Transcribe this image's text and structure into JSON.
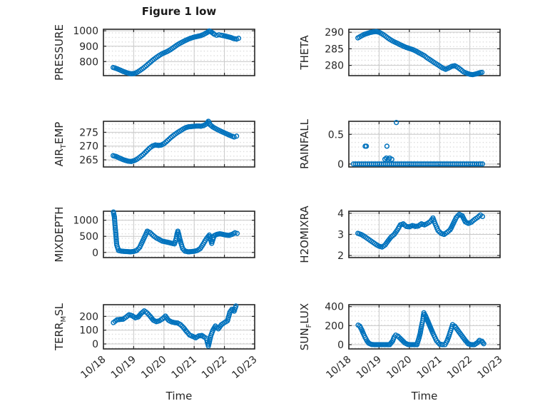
{
  "title": "Figure 1 low",
  "xlabel": "Time",
  "x_tick_labels": [
    "10/18",
    "10/19",
    "10/20",
    "10/21",
    "10/22",
    "10/23"
  ],
  "style": {
    "marker_color": "#0072BD",
    "axis_color": "#262626",
    "major_grid_color": "#c9c9c9",
    "minor_grid_dot_color": "#d6d6d6",
    "text_color": "#262626",
    "background": "#ffffff"
  },
  "chart_data": [
    {
      "type": "scatter",
      "name": "PRESSURE",
      "row": 0,
      "col": 0,
      "ylabel_parts": [
        {
          "text": "PRESSURE",
          "sub": false
        }
      ],
      "ylim": [
        709,
        1010
      ],
      "yticks": [
        800,
        900,
        1000
      ],
      "xlim_days": [
        0,
        5
      ],
      "grid": true,
      "minor_grid": true,
      "series": [
        {
          "interpolate": true,
          "x": [
            0.32,
            0.42,
            0.52,
            0.62,
            0.72,
            0.82,
            0.92,
            1.02,
            1.12,
            1.22,
            1.32,
            1.42,
            1.52,
            1.62,
            1.72,
            1.82,
            1.92,
            2.02,
            2.12,
            2.22,
            2.32,
            2.42,
            2.52,
            2.62,
            2.72,
            2.82,
            2.92,
            3.02,
            3.12,
            3.22,
            3.32,
            3.42,
            3.5,
            3.58,
            3.66,
            3.74,
            3.82,
            3.9,
            4.0,
            4.1,
            4.2,
            4.3,
            4.4,
            4.47
          ],
          "y": [
            762,
            756,
            748,
            739,
            731,
            725,
            721,
            723,
            731,
            744,
            758,
            774,
            791,
            808,
            823,
            837,
            849,
            858,
            867,
            878,
            892,
            906,
            918,
            928,
            938,
            947,
            954,
            960,
            964,
            969,
            977,
            988,
            999,
            990,
            978,
            971,
            974,
            971,
            967,
            962,
            957,
            950,
            946,
            951
          ]
        }
      ]
    },
    {
      "type": "scatter",
      "name": "THETA",
      "row": 0,
      "col": 1,
      "ylabel_parts": [
        {
          "text": "THETA",
          "sub": false
        }
      ],
      "ylim": [
        276.9,
        290.9
      ],
      "yticks": [
        280,
        285,
        290
      ],
      "xlim_days": [
        0,
        5
      ],
      "grid": true,
      "minor_grid": true,
      "series": [
        {
          "interpolate": true,
          "x": [
            0.3,
            0.4,
            0.5,
            0.6,
            0.7,
            0.8,
            0.9,
            1.0,
            1.1,
            1.2,
            1.3,
            1.4,
            1.5,
            1.6,
            1.7,
            1.8,
            1.9,
            2.0,
            2.1,
            2.2,
            2.3,
            2.4,
            2.5,
            2.6,
            2.7,
            2.8,
            2.9,
            3.0,
            3.1,
            3.2,
            3.3,
            3.4,
            3.5,
            3.6,
            3.7,
            3.8,
            3.9,
            4.0,
            4.1,
            4.2,
            4.3,
            4.4
          ],
          "y": [
            288.3,
            288.8,
            289.3,
            289.6,
            289.9,
            290.1,
            290.2,
            290.0,
            289.5,
            288.9,
            288.2,
            287.6,
            287.1,
            286.7,
            286.2,
            285.8,
            285.4,
            285.1,
            284.8,
            284.4,
            283.9,
            283.4,
            282.9,
            282.2,
            281.6,
            281.0,
            280.4,
            279.8,
            279.2,
            278.8,
            279.2,
            279.7,
            279.9,
            279.4,
            278.7,
            278.0,
            277.6,
            277.3,
            277.2,
            277.4,
            277.7,
            277.9
          ]
        }
      ]
    },
    {
      "type": "scatter",
      "name": "AIR_TEMP",
      "row": 1,
      "col": 0,
      "ylabel_parts": [
        {
          "text": "AIR",
          "sub": false
        },
        {
          "text": "T",
          "sub": true
        },
        {
          "text": "EMP",
          "sub": false
        }
      ],
      "ylim": [
        262.4,
        279.0
      ],
      "yticks": [
        265,
        270,
        275
      ],
      "xlim_days": [
        0,
        5
      ],
      "grid": true,
      "minor_grid": true,
      "series": [
        {
          "interpolate": true,
          "x": [
            0.32,
            0.42,
            0.52,
            0.62,
            0.72,
            0.82,
            0.92,
            1.02,
            1.12,
            1.22,
            1.32,
            1.42,
            1.52,
            1.62,
            1.72,
            1.82,
            1.92,
            2.02,
            2.12,
            2.22,
            2.32,
            2.42,
            2.52,
            2.62,
            2.72,
            2.82,
            2.92,
            3.02,
            3.12,
            3.22,
            3.32,
            3.42,
            3.47,
            3.54,
            3.62,
            3.72,
            3.82,
            3.92,
            4.02,
            4.12,
            4.22,
            4.32,
            4.4
          ],
          "y": [
            266.5,
            266.2,
            265.7,
            265.2,
            264.8,
            264.5,
            264.4,
            264.7,
            265.3,
            266.1,
            267.0,
            268.1,
            269.2,
            270.0,
            270.4,
            270.2,
            270.4,
            271.0,
            272.0,
            273.0,
            273.9,
            274.7,
            275.4,
            276.1,
            276.7,
            277.0,
            277.1,
            277.2,
            277.3,
            277.2,
            277.5,
            278.1,
            279.0,
            277.6,
            276.9,
            276.3,
            275.7,
            275.2,
            274.7,
            274.2,
            273.7,
            273.3,
            273.6
          ]
        }
      ]
    },
    {
      "type": "scatter",
      "name": "RAINFALL",
      "row": 1,
      "col": 1,
      "ylabel_parts": [
        {
          "text": "RAINFALL",
          "sub": false
        }
      ],
      "ylim": [
        -0.05,
        0.72
      ],
      "yticks": [
        0,
        0.5
      ],
      "xlim_days": [
        0,
        5
      ],
      "grid": true,
      "minor_grid": true,
      "series": [
        {
          "interpolate": true,
          "x": [
            0.15,
            0.35,
            0.55,
            0.75,
            0.95,
            1.15,
            1.35,
            1.55,
            1.75,
            1.95,
            2.15,
            2.35,
            2.55,
            2.75,
            2.95,
            3.15,
            3.35,
            3.55,
            3.75,
            3.95,
            4.15,
            4.3,
            4.42
          ],
          "y": [
            0,
            0,
            0,
            0,
            0,
            0,
            0,
            0,
            0,
            0,
            0,
            0,
            0,
            0,
            0,
            0,
            0,
            0,
            0,
            0,
            0,
            0,
            0
          ]
        },
        {
          "interpolate": false,
          "x": [
            0.54,
            0.58,
            1.19,
            1.24,
            1.26,
            1.3,
            1.35,
            1.42,
            1.57
          ],
          "y": [
            0.3,
            0.3,
            0.08,
            0.1,
            0.3,
            0.08,
            0.1,
            0.08,
            0.7
          ]
        }
      ]
    },
    {
      "type": "scatter",
      "name": "MIXDEPTH",
      "row": 2,
      "col": 0,
      "ylabel_parts": [
        {
          "text": "MIXDEPTH",
          "sub": false
        }
      ],
      "ylim": [
        -160,
        1280
      ],
      "yticks": [
        0,
        500,
        1000
      ],
      "xlim_days": [
        0,
        5
      ],
      "grid": true,
      "minor_grid": true,
      "series": [
        {
          "interpolate": true,
          "x": [
            0.33,
            0.36,
            0.4,
            0.44,
            0.5,
            0.6,
            0.7,
            0.8,
            0.9,
            1.0,
            1.1,
            1.2,
            1.3,
            1.4,
            1.45,
            1.55,
            1.65,
            1.75,
            1.85,
            1.95,
            2.05,
            2.15,
            2.25,
            2.35,
            2.4,
            2.43,
            2.46,
            2.49,
            2.52,
            2.56,
            2.62,
            2.7,
            2.8,
            2.9,
            3.0,
            3.1,
            3.2,
            3.3,
            3.4,
            3.5,
            3.58,
            3.66,
            3.75,
            3.85,
            3.95,
            4.05,
            4.15,
            4.25,
            4.35,
            4.42
          ],
          "y": [
            1255,
            1110,
            670,
            230,
            60,
            40,
            30,
            25,
            20,
            30,
            60,
            160,
            360,
            560,
            660,
            610,
            520,
            450,
            400,
            350,
            330,
            310,
            285,
            265,
            420,
            560,
            660,
            560,
            440,
            300,
            120,
            40,
            20,
            25,
            35,
            60,
            120,
            260,
            420,
            540,
            280,
            520,
            560,
            580,
            560,
            540,
            530,
            560,
            610,
            590
          ]
        }
      ]
    },
    {
      "type": "scatter",
      "name": "H2OMIXRA",
      "row": 2,
      "col": 1,
      "ylabel_parts": [
        {
          "text": "H2OMIXRA",
          "sub": false
        }
      ],
      "ylim": [
        1.9,
        4.1
      ],
      "yticks": [
        2,
        3,
        4
      ],
      "xlim_days": [
        0,
        5
      ],
      "grid": true,
      "minor_grid": true,
      "series": [
        {
          "interpolate": true,
          "x": [
            0.3,
            0.4,
            0.5,
            0.6,
            0.7,
            0.8,
            0.9,
            1.0,
            1.1,
            1.2,
            1.3,
            1.4,
            1.5,
            1.6,
            1.7,
            1.8,
            1.9,
            2.0,
            2.1,
            2.2,
            2.3,
            2.4,
            2.5,
            2.6,
            2.7,
            2.78,
            2.85,
            2.95,
            3.05,
            3.15,
            3.25,
            3.35,
            3.45,
            3.55,
            3.65,
            3.75,
            3.85,
            3.95,
            4.05,
            4.15,
            4.25,
            4.35,
            4.42
          ],
          "y": [
            3.05,
            3.0,
            2.92,
            2.82,
            2.72,
            2.62,
            2.52,
            2.44,
            2.4,
            2.5,
            2.7,
            2.88,
            3.0,
            3.2,
            3.45,
            3.5,
            3.38,
            3.36,
            3.42,
            3.38,
            3.4,
            3.5,
            3.45,
            3.52,
            3.62,
            3.78,
            3.52,
            3.18,
            3.05,
            3.0,
            3.1,
            3.22,
            3.5,
            3.8,
            3.95,
            3.88,
            3.6,
            3.52,
            3.58,
            3.7,
            3.8,
            3.92,
            3.85
          ]
        }
      ]
    },
    {
      "type": "scatter",
      "name": "TERR_MSL",
      "row": 3,
      "col": 0,
      "ylabel_parts": [
        {
          "text": "TERR",
          "sub": false
        },
        {
          "text": "M",
          "sub": true
        },
        {
          "text": "SL",
          "sub": false
        }
      ],
      "ylim": [
        -36,
        285
      ],
      "yticks": [
        0,
        100,
        200
      ],
      "xlim_days": [
        0,
        5
      ],
      "grid": true,
      "minor_grid": true,
      "series": [
        {
          "interpolate": true,
          "x": [
            0.33,
            0.45,
            0.55,
            0.65,
            0.75,
            0.85,
            0.95,
            1.05,
            1.15,
            1.25,
            1.35,
            1.45,
            1.55,
            1.65,
            1.75,
            1.85,
            1.95,
            2.05,
            2.15,
            2.25,
            2.35,
            2.45,
            2.55,
            2.65,
            2.75,
            2.85,
            2.95,
            3.05,
            3.15,
            3.25,
            3.33,
            3.4,
            3.47,
            3.55,
            3.62,
            3.7,
            3.8,
            3.9,
            4.0,
            4.1,
            4.18,
            4.25,
            4.32,
            4.38
          ],
          "y": [
            155,
            175,
            178,
            180,
            195,
            212,
            205,
            190,
            196,
            222,
            240,
            224,
            200,
            172,
            162,
            168,
            182,
            202,
            172,
            160,
            155,
            152,
            140,
            118,
            90,
            65,
            55,
            45,
            58,
            62,
            50,
            42,
            -15,
            60,
            100,
            130,
            110,
            140,
            155,
            168,
            230,
            252,
            238,
            275
          ]
        }
      ]
    },
    {
      "type": "scatter",
      "name": "SUN_FLUX",
      "row": 3,
      "col": 1,
      "ylabel_parts": [
        {
          "text": "SUN",
          "sub": false
        },
        {
          "text": "F",
          "sub": true
        },
        {
          "text": "LUX",
          "sub": false
        }
      ],
      "ylim": [
        -45,
        420
      ],
      "yticks": [
        0,
        200,
        400
      ],
      "xlim_days": [
        0,
        5
      ],
      "grid": true,
      "minor_grid": true,
      "series": [
        {
          "interpolate": true,
          "x": [
            0.31,
            0.36,
            0.42,
            0.48,
            0.54,
            0.6,
            0.66,
            0.75,
            0.85,
            0.95,
            1.05,
            1.15,
            1.25,
            1.35,
            1.45,
            1.5,
            1.55,
            1.62,
            1.7,
            1.78,
            1.85,
            1.95,
            2.05,
            2.15,
            2.25,
            2.32,
            2.36,
            2.4,
            2.44,
            2.48,
            2.54,
            2.6,
            2.66,
            2.72,
            2.78,
            2.84,
            2.9,
            3.0,
            3.1,
            3.18,
            3.25,
            3.31,
            3.37,
            3.43,
            3.5,
            3.57,
            3.64,
            3.71,
            3.78,
            3.85,
            3.95,
            4.05,
            4.15,
            4.25,
            4.32,
            4.4,
            4.46
          ],
          "y": [
            205,
            195,
            160,
            115,
            75,
            40,
            15,
            2,
            0,
            0,
            0,
            0,
            0,
            0,
            40,
            80,
            100,
            90,
            65,
            40,
            18,
            2,
            0,
            0,
            0,
            70,
            120,
            190,
            250,
            335,
            300,
            255,
            210,
            165,
            120,
            80,
            40,
            5,
            0,
            0,
            40,
            90,
            150,
            210,
            195,
            165,
            135,
            105,
            75,
            45,
            8,
            0,
            0,
            20,
            45,
            35,
            10
          ]
        }
      ]
    }
  ]
}
